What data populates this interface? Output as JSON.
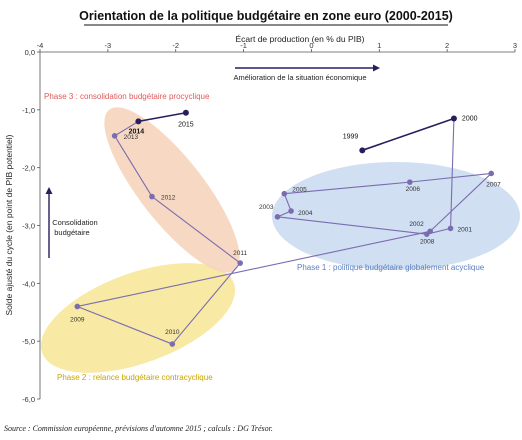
{
  "chart_data": {
    "type": "scatter",
    "title": "Orientation de la politique budgétaire en zone euro (2000-2015)",
    "xlabel": "Écart de production (en % du PIB)",
    "ylabel": "Solde ajusté du cycle (en point de PIB potentiel)",
    "xlim": [
      -4,
      3
    ],
    "ylim": [
      -6,
      0
    ],
    "x_ticks": [
      "-4",
      "-3",
      "-2",
      "-1",
      "0",
      "1",
      "2",
      "3"
    ],
    "y_ticks": [
      "0,0",
      "-1,0",
      "-2,0",
      "-3,0",
      "-4,0",
      "-5,0",
      "-6,0"
    ],
    "x_ticks_position": "top",
    "points": [
      {
        "label": "1999",
        "x": 0.75,
        "y": -1.7,
        "segment": "dark"
      },
      {
        "label": "2000",
        "x": 2.1,
        "y": -1.15,
        "segment": "dark"
      },
      {
        "label": "2001",
        "x": 2.05,
        "y": -3.05,
        "segment": "light"
      },
      {
        "label": "2002",
        "x": 1.7,
        "y": -3.15,
        "segment": "light"
      },
      {
        "label": "2003",
        "x": -0.5,
        "y": -2.85,
        "segment": "light"
      },
      {
        "label": "2004",
        "x": -0.3,
        "y": -2.75,
        "segment": "light"
      },
      {
        "label": "2005",
        "x": -0.4,
        "y": -2.45,
        "segment": "light"
      },
      {
        "label": "2006",
        "x": 1.45,
        "y": -2.25,
        "segment": "light"
      },
      {
        "label": "2007",
        "x": 2.65,
        "y": -2.1,
        "segment": "light"
      },
      {
        "label": "2008",
        "x": 1.75,
        "y": -3.1,
        "segment": "light"
      },
      {
        "label": "2009",
        "x": -3.45,
        "y": -4.4,
        "segment": "light"
      },
      {
        "label": "2010",
        "x": -2.05,
        "y": -5.05,
        "segment": "light"
      },
      {
        "label": "2011",
        "x": -1.05,
        "y": -3.65,
        "segment": "light"
      },
      {
        "label": "2012",
        "x": -2.35,
        "y": -2.5,
        "segment": "light"
      },
      {
        "label": "2013",
        "x": -2.9,
        "y": -1.45,
        "segment": "light"
      },
      {
        "label": "2014",
        "x": -2.55,
        "y": -1.2,
        "segment": "dark"
      },
      {
        "label": "2015",
        "x": -1.85,
        "y": -1.05,
        "segment": "dark"
      }
    ],
    "phases": [
      {
        "label": "Phase 1 : politique budgétaire globalement acyclique",
        "color": "#c9d9f0",
        "text_color": "#5b7fbf"
      },
      {
        "label": "Phase 2 : relance budgétaire contracyclique",
        "color": "#f7e79a",
        "text_color": "#c9a400"
      },
      {
        "label": "Phase 3 : consolidation budgétaire procyclique",
        "color": "#f6d5bd",
        "text_color": "#e05a5a"
      }
    ],
    "annotations": {
      "improvement": "Amélioration de la situation économique",
      "consolidation_line1": "Consolidation",
      "consolidation_line2": "budgétaire"
    },
    "colors": {
      "line": "#7b6cb0",
      "marker": "#7b6cb0",
      "dark": "#2a1d5e"
    },
    "grid": false
  },
  "source": "Source : Commission européenne, prévisions d'automne 2015 ; calculs : DG Trésor."
}
